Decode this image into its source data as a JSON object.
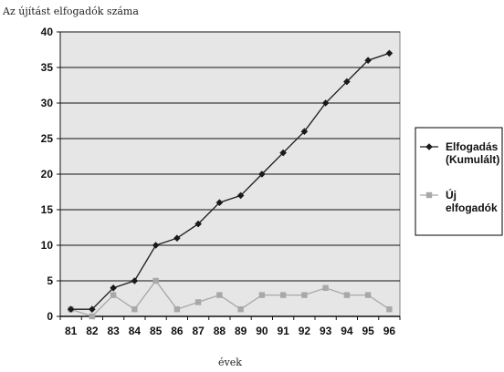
{
  "chart_data": {
    "type": "line",
    "title": "",
    "ylabel": "Az újítást elfogadók száma",
    "xlabel": "évek",
    "categories": [
      "81",
      "82",
      "83",
      "84",
      "85",
      "86",
      "87",
      "88",
      "89",
      "90",
      "91",
      "92",
      "93",
      "94",
      "95",
      "96"
    ],
    "ylim": [
      0,
      40
    ],
    "yticks": [
      "0",
      "5",
      "10",
      "15",
      "20",
      "25",
      "30",
      "35",
      "40"
    ],
    "grid": true,
    "legend_position": "right",
    "series": [
      {
        "name": "Elfogadás (Kumulált)",
        "name_lines": [
          "Elfogadás",
          "(Kumulált)"
        ],
        "color": "#1a1a1a",
        "marker": "diamond",
        "values": [
          1,
          1,
          4,
          5,
          10,
          11,
          13,
          16,
          17,
          20,
          23,
          26,
          30,
          33,
          36,
          37
        ]
      },
      {
        "name": "Új elfogadók",
        "name_lines": [
          "Új",
          "elfogadók"
        ],
        "color": "#a8a8a8",
        "marker": "square",
        "values": [
          1,
          0,
          3,
          1,
          5,
          1,
          2,
          3,
          1,
          3,
          3,
          3,
          4,
          3,
          3,
          1
        ]
      }
    ]
  }
}
